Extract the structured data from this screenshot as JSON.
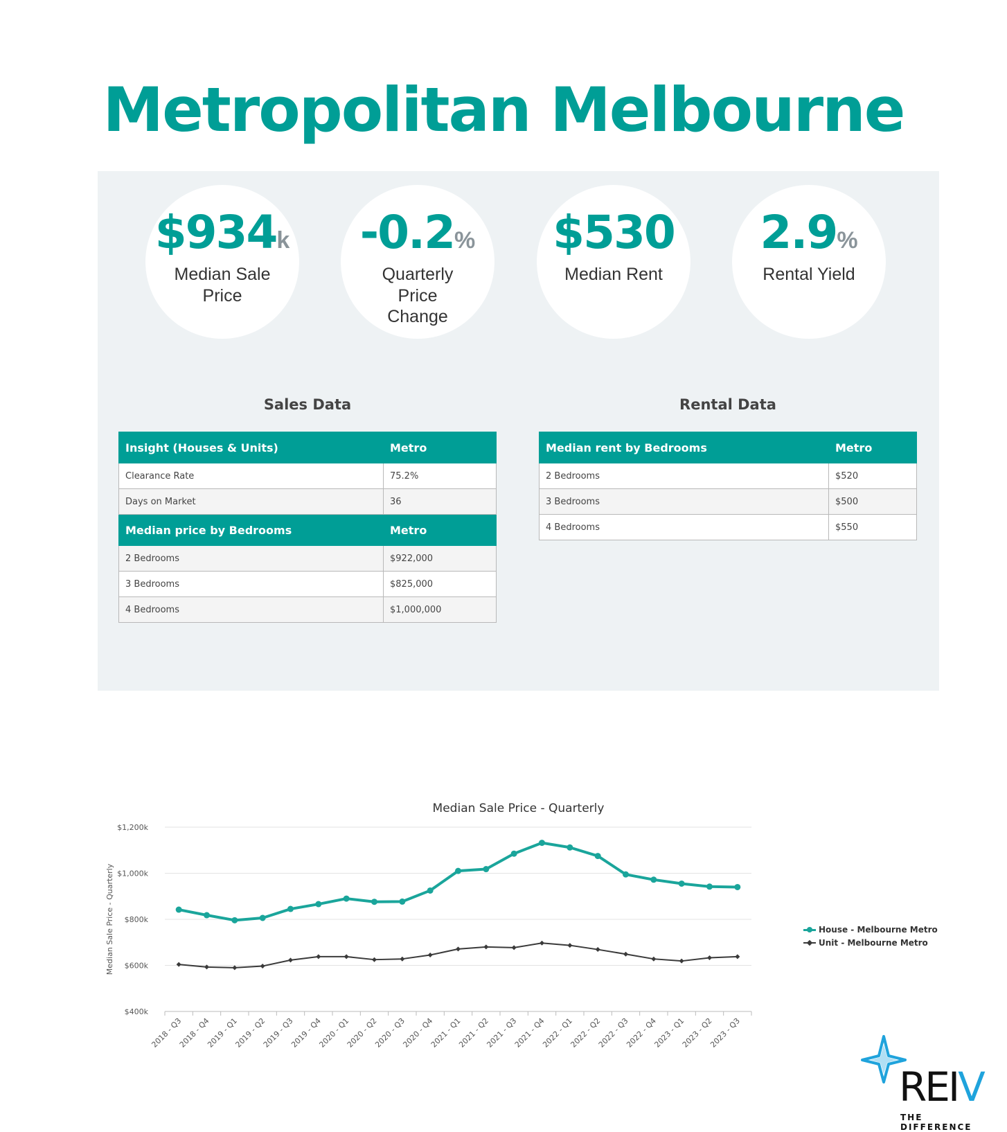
{
  "page": {
    "title": "Metropolitan Melbourne"
  },
  "kpis": [
    {
      "value": "$934",
      "unit": "k",
      "label": "Median Sale Price"
    },
    {
      "value": "-0.2",
      "unit": "%",
      "label": "Quarterly Price Change"
    },
    {
      "value": "$530",
      "unit": "",
      "label": "Median Rent"
    },
    {
      "value": "2.9",
      "unit": "%",
      "label": "Rental Yield"
    }
  ],
  "sales": {
    "title": "Sales Data",
    "insight_header": [
      "Insight (Houses & Units)",
      "Metro"
    ],
    "insight_rows": [
      [
        "Clearance Rate",
        "75.2%"
      ],
      [
        "Days on Market",
        "36"
      ]
    ],
    "bedroom_header": [
      "Median price by Bedrooms",
      "Metro"
    ],
    "bedroom_rows": [
      [
        "2 Bedrooms",
        "$922,000"
      ],
      [
        "3 Bedrooms",
        "$825,000"
      ],
      [
        "4 Bedrooms",
        "$1,000,000"
      ]
    ]
  },
  "rental": {
    "title": "Rental Data",
    "header": [
      "Median rent by Bedrooms",
      "Metro"
    ],
    "rows": [
      [
        "2 Bedrooms",
        "$520"
      ],
      [
        "3 Bedrooms",
        "$500"
      ],
      [
        "4 Bedrooms",
        "$550"
      ]
    ]
  },
  "chart_data": {
    "type": "line",
    "title": "Median Sale Price - Quarterly",
    "xlabel": "",
    "ylabel": "Median Sale Price - Quarterly",
    "x": [
      "2018 - Q3",
      "2018 - Q4",
      "2019 - Q1",
      "2019 - Q2",
      "2019 - Q3",
      "2019 - Q4",
      "2020 - Q1",
      "2020 - Q2",
      "2020 - Q3",
      "2020 - Q4",
      "2021 - Q1",
      "2021 - Q2",
      "2021 - Q3",
      "2021 - Q4",
      "2022 - Q1",
      "2022 - Q2",
      "2022 - Q3",
      "2022 - Q4",
      "2023 - Q1",
      "2023 - Q2",
      "2023 - Q3"
    ],
    "yticks": [
      400,
      600,
      800,
      1000,
      1200
    ],
    "ytick_labels": [
      "$400k",
      "$600k",
      "$800k",
      "$1,000k",
      "$1,200k"
    ],
    "ylim": [
      400,
      1200
    ],
    "grid": true,
    "legend": "right",
    "series": [
      {
        "name": "House - Melbourne Metro",
        "color": "#1aa59b",
        "marker": "circle",
        "values": [
          842,
          818,
          796,
          806,
          845,
          866,
          890,
          876,
          877,
          925,
          1010,
          1018,
          1085,
          1132,
          1112,
          1075,
          995,
          972,
          955,
          942,
          940
        ]
      },
      {
        "name": "Unit - Melbourne Metro",
        "color": "#3a3a3a",
        "marker": "diamond",
        "values": [
          604,
          593,
          590,
          597,
          623,
          638,
          638,
          625,
          628,
          645,
          671,
          680,
          677,
          697,
          687,
          669,
          649,
          628,
          619,
          633,
          638
        ]
      }
    ]
  },
  "logo": {
    "text_main": "REI",
    "text_accent": "V",
    "tagline": "THE DIFFERENCE"
  }
}
